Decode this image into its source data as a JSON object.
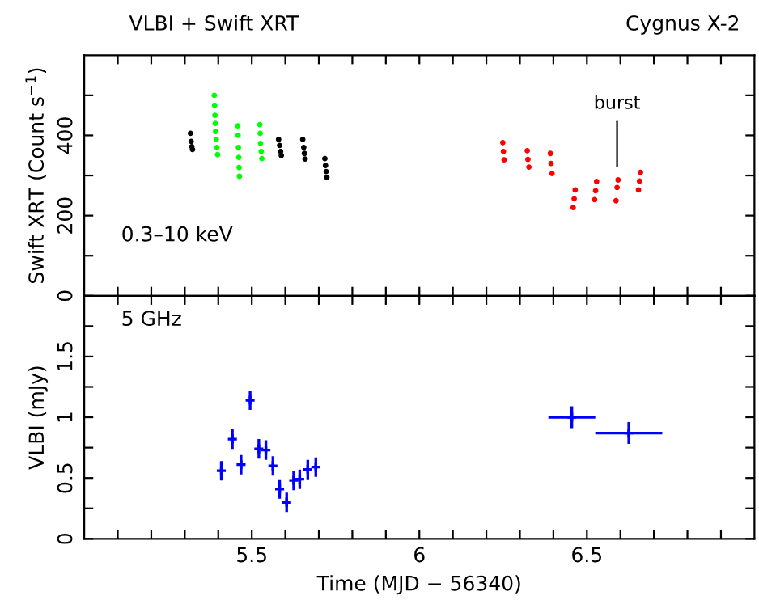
{
  "chart_data": [
    {
      "type": "scatter",
      "title": "VLBI + Swift XRT",
      "ylabel": "Swift XRT (Count s$^{−1}$)",
      "marker": "circle",
      "tick_labels": "y",
      "grid": false,
      "xlim": [
        5,
        7
      ],
      "xticks": [
        {
          "value": 5.1,
          "label": null
        },
        {
          "value": 5.2,
          "label": null
        },
        {
          "value": 5.3,
          "label": null
        },
        {
          "value": 5.4,
          "label": null
        },
        {
          "value": 5.5,
          "label": null
        },
        {
          "value": 5.6,
          "label": null
        },
        {
          "value": 5.7,
          "label": null
        },
        {
          "value": 5.8,
          "label": null
        },
        {
          "value": 5.9,
          "label": null
        },
        {
          "value": 6,
          "label": null
        },
        {
          "value": 6.1,
          "label": null
        },
        {
          "value": 6.2,
          "label": null
        },
        {
          "value": 6.3,
          "label": null
        },
        {
          "value": 6.4,
          "label": null
        },
        {
          "value": 6.5,
          "label": null
        },
        {
          "value": 6.6,
          "label": null
        },
        {
          "value": 6.7,
          "label": null
        },
        {
          "value": 6.8,
          "label": null
        },
        {
          "value": 6.9,
          "label": null
        }
      ],
      "ylim": [
        0,
        600
      ],
      "yticks": [
        0,
        {
          "value": 100,
          "label": null
        },
        200,
        {
          "value": 300,
          "label": null
        },
        400,
        {
          "value": 500,
          "label": null
        }
      ],
      "annotations": [
        "Cygnus X-2",
        "0.3–10 keV",
        {
          "text": "burst",
          "x": 6.59,
          "y": 289
        }
      ],
      "series": [
        {
          "color": "#000000",
          "x": [
            5.317,
            5.319,
            5.321,
            5.323,
            5.58,
            5.583,
            5.586,
            5.588,
            5.652,
            5.655,
            5.657,
            5.659,
            5.718,
            5.72,
            5.722,
            5.724
          ],
          "values": [
            405,
            385,
            372,
            365,
            390,
            375,
            360,
            350,
            390,
            370,
            355,
            341,
            342,
            325,
            310,
            295
          ]
        },
        {
          "color": "#00ff00",
          "x": [
            5.388,
            5.389,
            5.39,
            5.391,
            5.392,
            5.394,
            5.396,
            5.398,
            5.458,
            5.459,
            5.46,
            5.461,
            5.462,
            5.463,
            5.524,
            5.525,
            5.526,
            5.528,
            5.53
          ],
          "values": [
            500,
            475,
            450,
            430,
            410,
            390,
            370,
            352,
            424,
            400,
            370,
            345,
            320,
            298,
            427,
            405,
            380,
            360,
            342
          ]
        },
        {
          "color": "#ff0000",
          "x": [
            6.249,
            6.251,
            6.253,
            6.322,
            6.324,
            6.327,
            6.391,
            6.393,
            6.396,
            6.459,
            6.462,
            6.465,
            6.523,
            6.526,
            6.529,
            6.587,
            6.59,
            6.593,
            6.654,
            6.657,
            6.66
          ],
          "values": [
            382,
            360,
            339,
            362,
            340,
            321,
            355,
            330,
            305,
            220,
            242,
            264,
            240,
            262,
            285,
            237,
            270,
            289,
            264,
            286,
            308
          ]
        }
      ]
    },
    {
      "type": "scatter",
      "xlabel": "Time (MJD − 56340)",
      "ylabel": "VLBI (mJy)",
      "marker": "cross",
      "grid": false,
      "xlim": [
        5,
        7
      ],
      "xticks": [
        {
          "value": 5.1,
          "label": null
        },
        {
          "value": 5.2,
          "label": null
        },
        {
          "value": 5.3,
          "label": null
        },
        {
          "value": 5.4,
          "label": null
        },
        {
          "value": 5.5,
          "label": "5.5"
        },
        {
          "value": 5.6,
          "label": null
        },
        {
          "value": 5.7,
          "label": null
        },
        {
          "value": 5.8,
          "label": null
        },
        {
          "value": 5.9,
          "label": null
        },
        {
          "value": 6,
          "label": "6"
        },
        {
          "value": 6.1,
          "label": null
        },
        {
          "value": 6.2,
          "label": null
        },
        {
          "value": 6.3,
          "label": null
        },
        {
          "value": 6.4,
          "label": null
        },
        {
          "value": 6.5,
          "label": "6.5"
        },
        {
          "value": 6.6,
          "label": null
        },
        {
          "value": 6.7,
          "label": null
        },
        {
          "value": 6.8,
          "label": null
        },
        {
          "value": 6.9,
          "label": null
        }
      ],
      "ylim": [
        0,
        2
      ],
      "yticks": [
        0,
        {
          "value": 0.25,
          "label": null
        },
        0.5,
        {
          "value": 0.75,
          "label": null
        },
        1,
        {
          "value": 1.25,
          "label": null
        },
        1.5,
        {
          "value": 1.75,
          "label": null
        }
      ],
      "annotations": [
        "5 GHz"
      ],
      "series": [
        {
          "color": "#0000ff",
          "x": [
            5.409,
            5.442,
            5.468,
            5.495,
            5.521,
            5.542,
            5.563,
            5.583,
            5.604,
            5.625,
            5.643,
            5.667,
            5.691,
            6.455,
            6.625
          ],
          "values": [
            0.56,
            0.82,
            0.61,
            1.14,
            0.74,
            0.73,
            0.6,
            0.41,
            0.3,
            0.48,
            0.49,
            0.57,
            0.59,
            1.0,
            0.87
          ],
          "errors": [
            0.08,
            0.08,
            0.08,
            0.08,
            0.08,
            0.08,
            0.08,
            0.08,
            0.08,
            0.08,
            0.08,
            0.08,
            0.08,
            0.09,
            0.09
          ],
          "xerrors": [
            0.005,
            0.005,
            0.005,
            0.005,
            0.005,
            0.005,
            0.005,
            0.005,
            0.005,
            0.005,
            0.005,
            0.005,
            0.005,
            0.07,
            0.1
          ]
        }
      ]
    }
  ]
}
